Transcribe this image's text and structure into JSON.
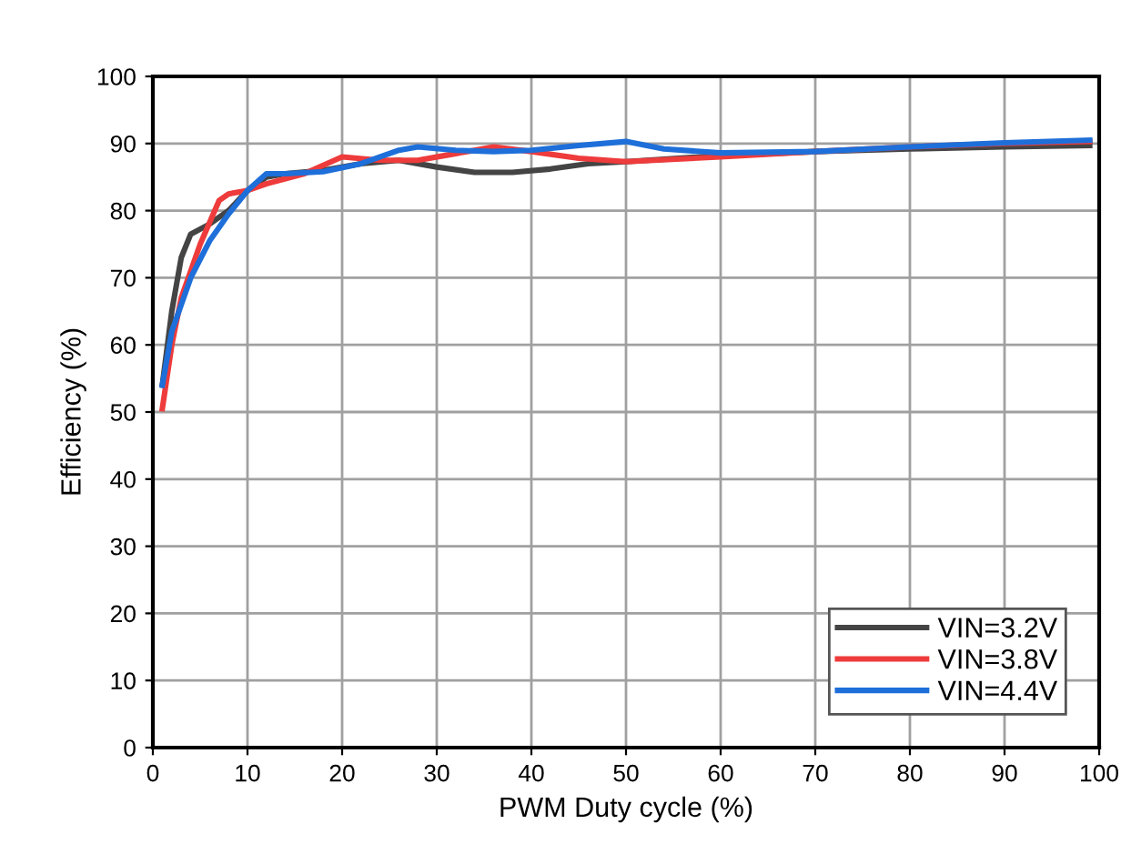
{
  "chart_data": {
    "type": "line",
    "xlabel": "PWM Duty cycle (%)",
    "ylabel": "Efficiency (%)",
    "xlim": [
      0,
      100
    ],
    "ylim": [
      0,
      100
    ],
    "xticks": [
      0,
      10,
      20,
      30,
      40,
      50,
      60,
      70,
      80,
      90,
      100
    ],
    "yticks": [
      0,
      10,
      20,
      30,
      40,
      50,
      60,
      70,
      80,
      90,
      100
    ],
    "grid": true,
    "legend": "bottom right",
    "marker": "none",
    "line_style": "solid",
    "series": [
      {
        "name": "VIN=3.2V",
        "color": "#444444",
        "x": [
          1,
          2,
          3,
          4,
          6,
          8,
          10,
          12,
          14,
          18,
          22,
          26,
          30,
          34,
          38,
          42,
          46,
          50,
          60,
          70,
          80,
          90,
          99
        ],
        "values": [
          54,
          65,
          73,
          76.5,
          78,
          80,
          83,
          85,
          85.5,
          86,
          87,
          87.5,
          86.5,
          85.7,
          85.7,
          86.2,
          87,
          87.3,
          88.2,
          88.8,
          89.2,
          89.5,
          89.7
        ]
      },
      {
        "name": "VIN=3.8V",
        "color": "#ee3b3b",
        "x": [
          1,
          2,
          3,
          5,
          7,
          8,
          10,
          12,
          16,
          20,
          24,
          28,
          32,
          36,
          40,
          45,
          50,
          60,
          70,
          80,
          90,
          99
        ],
        "values": [
          50.5,
          60,
          67,
          75,
          81.5,
          82.5,
          83,
          84,
          85.5,
          88,
          87.5,
          87.5,
          88.5,
          89.5,
          88.8,
          87.8,
          87.3,
          88,
          88.8,
          89.5,
          90,
          90.3
        ]
      },
      {
        "name": "VIN=4.4V",
        "color": "#1e6fd9",
        "x": [
          1,
          2,
          4,
          6,
          8,
          10,
          12,
          14,
          18,
          22,
          26,
          28,
          32,
          36,
          40,
          45,
          50,
          54,
          60,
          70,
          80,
          90,
          99
        ],
        "values": [
          54,
          62,
          70,
          75.5,
          79.5,
          83,
          85.5,
          85.5,
          85.8,
          87,
          89,
          89.5,
          89,
          88.8,
          89,
          89.7,
          90.3,
          89.2,
          88.6,
          88.8,
          89.5,
          90.1,
          90.5
        ]
      }
    ]
  }
}
